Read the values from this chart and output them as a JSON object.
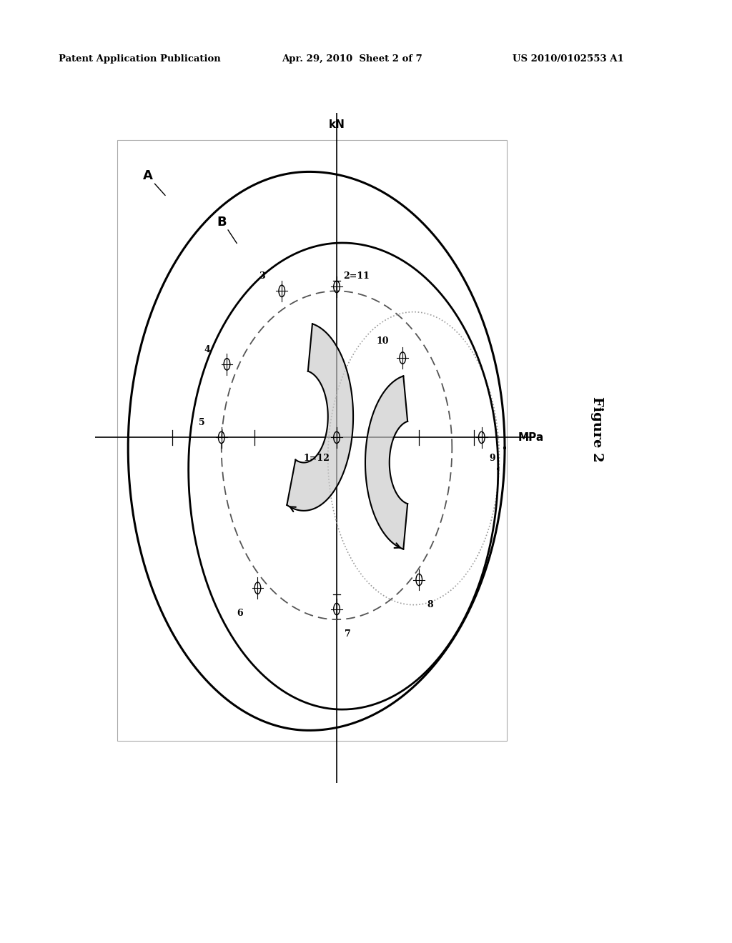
{
  "header_left": "Patent Application Publication",
  "header_mid": "Apr. 29, 2010  Sheet 2 of 7",
  "header_right": "US 2010/0102553 A1",
  "figure_label": "Figure 2",
  "axis_label_x": "MPa",
  "axis_label_y": "kN",
  "bg_color": "#ffffff",
  "box_color": "#cccccc",
  "line_color": "#000000"
}
